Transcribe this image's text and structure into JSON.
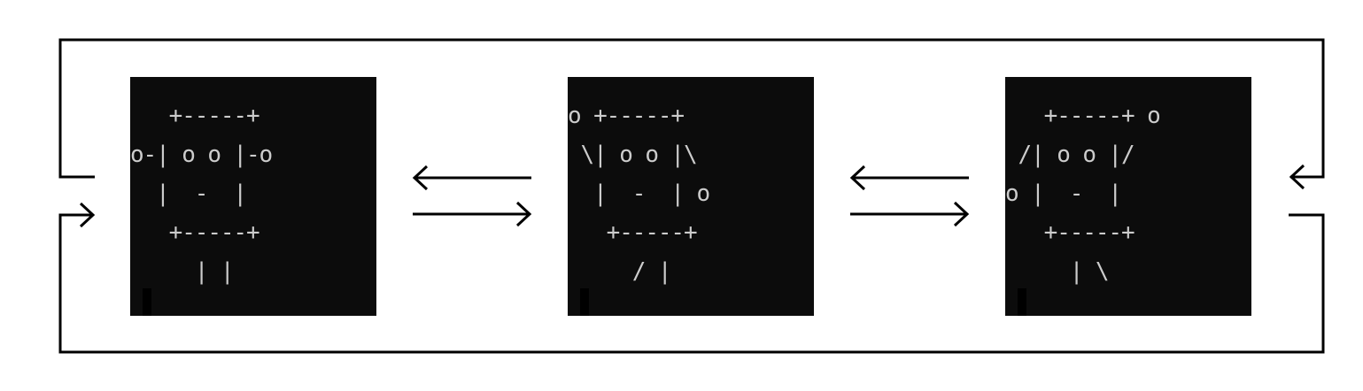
{
  "diagram": {
    "background_color": "#ffffff",
    "line_color": "#000000",
    "terminal_background": "#0c0c0c",
    "terminal_text_color": "#cccccc",
    "frames": [
      {
        "id": "frame-1",
        "lines": [
          "   +-----+",
          "o-| o o |-o",
          "  |  -  |",
          "   +-----+",
          "     | |"
        ]
      },
      {
        "id": "frame-2",
        "lines": [
          "o +-----+",
          " \\| o o |\\",
          "  |  -  | o",
          "   +-----+",
          "     / |"
        ]
      },
      {
        "id": "frame-3",
        "lines": [
          "   +-----+ o",
          " /| o o |/",
          "o |  -  |",
          "   +-----+",
          "     | \\"
        ]
      }
    ],
    "transitions": [
      {
        "from": "frame-1",
        "to": "frame-2",
        "direction": "right"
      },
      {
        "from": "frame-2",
        "to": "frame-1",
        "direction": "left"
      },
      {
        "from": "frame-2",
        "to": "frame-3",
        "direction": "right"
      },
      {
        "from": "frame-3",
        "to": "frame-2",
        "direction": "left"
      },
      {
        "from": "frame-3",
        "to": "frame-1",
        "direction": "loop-bottom"
      },
      {
        "from": "frame-1",
        "to": "frame-3",
        "direction": "loop-top"
      }
    ]
  }
}
